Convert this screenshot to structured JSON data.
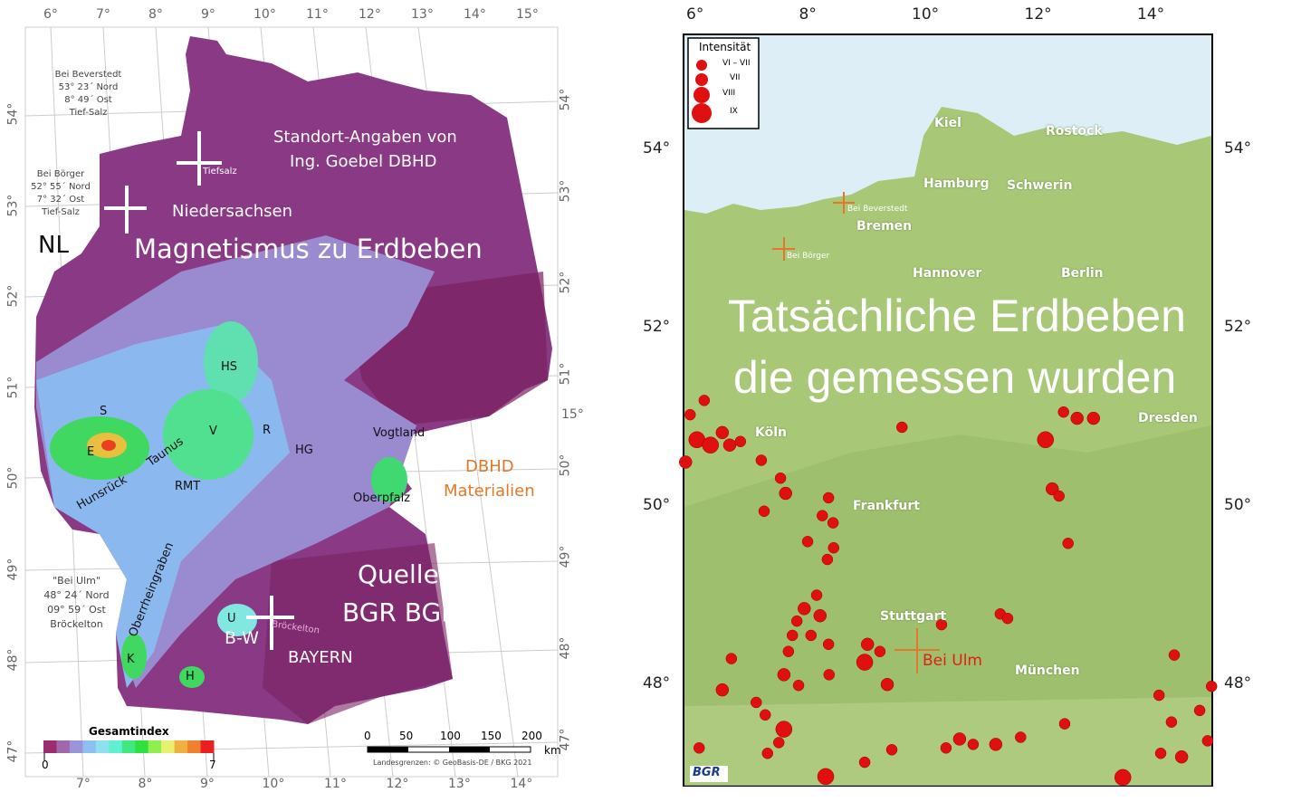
{
  "left_map": {
    "top_ticks": [
      "6°",
      "7°",
      "8°",
      "9°",
      "10°",
      "11°",
      "12°",
      "13°",
      "14°",
      "15°"
    ],
    "bottom_ticks": [
      "7°",
      "8°",
      "9°",
      "10°",
      "11°",
      "12°",
      "13°",
      "14°"
    ],
    "left_ticks": [
      "54°",
      "53°",
      "52°",
      "51°",
      "50°",
      "49°",
      "48°",
      "47°"
    ],
    "right_ticks": [
      "54°",
      "53°",
      "52°",
      "51°",
      "50°",
      "49°",
      "48°",
      "47°"
    ],
    "right_extra_tick": "15°",
    "annotations": {
      "beverstedt": [
        "Bei Beverstedt",
        "53° 23´ Nord",
        "8° 49´ Ost",
        "Tief-Salz"
      ],
      "boerger": [
        "Bei Börger",
        "52° 55´ Nord",
        "7° 32´ Ost",
        "Tief-Salz"
      ],
      "ulm": [
        "\"Bei Ulm\"",
        "48° 24´ Nord",
        "09° 59´ Ost",
        "Bröckelton"
      ]
    },
    "labels": {
      "tiefsalz": "Tiefsalz",
      "niedersachsen": "Niedersachsen",
      "nl": "NL",
      "title": "Magnetismus zu Erdbeben",
      "standort": "Standort-Angaben von",
      "goebel": "Ing. Goebel DBHD",
      "hs": "HS",
      "s": "S",
      "e": "E",
      "v": "V",
      "r": "R",
      "hg": "HG",
      "vogtland": "Vogtland",
      "taunus": "Taunus",
      "hunsrueck": "Hunsrück",
      "rmt": "RMT",
      "oberpfalz": "Oberpfalz",
      "dbhd": "DBHD",
      "materialien": "Materialien",
      "oberrheingraben": "Oberrheingraben",
      "quelle": "Quelle",
      "bgr_bge": "BGR BGE",
      "u": "U",
      "bw": "B-W",
      "broeckelton": "Bröckelton",
      "bayern": "BAYERN",
      "k": "K",
      "h": "H"
    },
    "legend": {
      "title": "Gesamtindex",
      "min": "0",
      "max": "7",
      "colors": [
        "#9b2c6e",
        "#a068a8",
        "#9a94d8",
        "#8cc0f0",
        "#8ee0f0",
        "#60f0d0",
        "#40e880",
        "#30e040",
        "#90ee50",
        "#e8f070",
        "#f0b040",
        "#f08030",
        "#e82020"
      ]
    },
    "scale": {
      "ticks": [
        "0",
        "50",
        "100",
        "150",
        "200"
      ],
      "unit": "km",
      "credit": "Landesgrenzen: © GeoBasis-DE / BKG 2021"
    },
    "colors": {
      "purple": "#8a3a85",
      "dark": "#7a2060",
      "lavender": "#9a8ad0",
      "blue": "#8cb8f0"
    }
  },
  "right_map": {
    "top_ticks": [
      "6°",
      "8°",
      "10°",
      "12°",
      "14°"
    ],
    "lat_ticks": [
      "54°",
      "52°",
      "50°",
      "48°"
    ],
    "legend": {
      "title": "Intensität",
      "classes": [
        {
          "label": "VI – VII",
          "r": 5
        },
        {
          "label": "VII",
          "r": 6
        },
        {
          "label": "VIII",
          "r": 8
        },
        {
          "label": "IX",
          "r": 10
        }
      ]
    },
    "cities": {
      "kiel": "Kiel",
      "rostock": "Rostock",
      "hamburg": "Hamburg",
      "schwerin": "Schwerin",
      "bremen": "Bremen",
      "berlin": "Berlin",
      "hannover": "Hannover",
      "koeln": "Köln",
      "dresden": "Dresden",
      "frankfurt": "Frankfurt",
      "stuttgart": "Stuttgart",
      "muenchen": "München"
    },
    "sites": {
      "beverstedt": "Bei Beverstedt",
      "boerger": "Bei Börger",
      "ulm": "Bei Ulm"
    },
    "title_line1": "Tatsächliche Erdbeben",
    "title_line2": "die gemessen wurden",
    "logo": "BGR",
    "quakes": [
      [
        5.94,
        51.04,
        0
      ],
      [
        6.19,
        51.2,
        0
      ],
      [
        6.06,
        50.76,
        2
      ],
      [
        6.3,
        50.7,
        2
      ],
      [
        6.51,
        50.84,
        1
      ],
      [
        6.64,
        50.7,
        1
      ],
      [
        6.83,
        50.74,
        0
      ],
      [
        5.86,
        50.51,
        1
      ],
      [
        7.2,
        50.53,
        0
      ],
      [
        7.54,
        50.33,
        0
      ],
      [
        7.63,
        50.16,
        1
      ],
      [
        7.25,
        49.96,
        0
      ],
      [
        8.39,
        50.11,
        0
      ],
      [
        8.28,
        49.91,
        0
      ],
      [
        8.47,
        49.83,
        0
      ],
      [
        8.02,
        49.62,
        0
      ],
      [
        8.48,
        49.55,
        0
      ],
      [
        8.37,
        49.42,
        0
      ],
      [
        7.96,
        48.87,
        1
      ],
      [
        8.18,
        49.02,
        0
      ],
      [
        8.24,
        48.79,
        1
      ],
      [
        7.83,
        48.73,
        0
      ],
      [
        7.75,
        48.57,
        0
      ],
      [
        8.08,
        48.57,
        0
      ],
      [
        7.68,
        48.39,
        0
      ],
      [
        8.39,
        48.47,
        0
      ],
      [
        8.4,
        48.13,
        0
      ],
      [
        7.6,
        48.13,
        1
      ],
      [
        7.86,
        48.01,
        0
      ],
      [
        6.51,
        47.96,
        1
      ],
      [
        6.67,
        48.31,
        0
      ],
      [
        7.11,
        47.82,
        0
      ],
      [
        7.27,
        47.68,
        0
      ],
      [
        7.6,
        47.52,
        2
      ],
      [
        7.51,
        47.37,
        0
      ],
      [
        7.31,
        47.25,
        0
      ],
      [
        8.34,
        46.99,
        2
      ],
      [
        9.03,
        48.27,
        2
      ],
      [
        9.3,
        48.39,
        0
      ],
      [
        9.08,
        48.47,
        1
      ],
      [
        9.43,
        48.02,
        1
      ],
      [
        9.69,
        50.9,
        0
      ],
      [
        10.39,
        48.69,
        0
      ],
      [
        11.43,
        48.81,
        0
      ],
      [
        11.56,
        48.76,
        0
      ],
      [
        12.23,
        50.76,
        2
      ],
      [
        12.55,
        51.07,
        0
      ],
      [
        12.79,
        51.0,
        1
      ],
      [
        13.08,
        51.0,
        1
      ],
      [
        12.35,
        50.21,
        1
      ],
      [
        12.47,
        50.13,
        0
      ],
      [
        12.63,
        49.6,
        0
      ],
      [
        14.51,
        48.35,
        0
      ],
      [
        14.24,
        47.9,
        0
      ],
      [
        15.17,
        48.0,
        0
      ],
      [
        14.96,
        47.73,
        0
      ],
      [
        14.46,
        47.6,
        0
      ],
      [
        14.27,
        47.25,
        0
      ],
      [
        14.64,
        47.21,
        1
      ],
      [
        15.1,
        47.39,
        0
      ],
      [
        12.57,
        47.58,
        0
      ],
      [
        10.71,
        47.41,
        1
      ],
      [
        10.95,
        47.35,
        0
      ],
      [
        11.35,
        47.35,
        1
      ],
      [
        11.79,
        47.43,
        0
      ],
      [
        9.51,
        47.29,
        0
      ],
      [
        9.03,
        47.15,
        0
      ],
      [
        13.6,
        46.98,
        2
      ],
      [
        6.1,
        47.31,
        0
      ],
      [
        10.47,
        47.31,
        0
      ]
    ],
    "colors": {
      "land": "#a8c878",
      "sea": "#ddeef6",
      "quake": "#e01010",
      "marker": "#e07a2a"
    }
  }
}
